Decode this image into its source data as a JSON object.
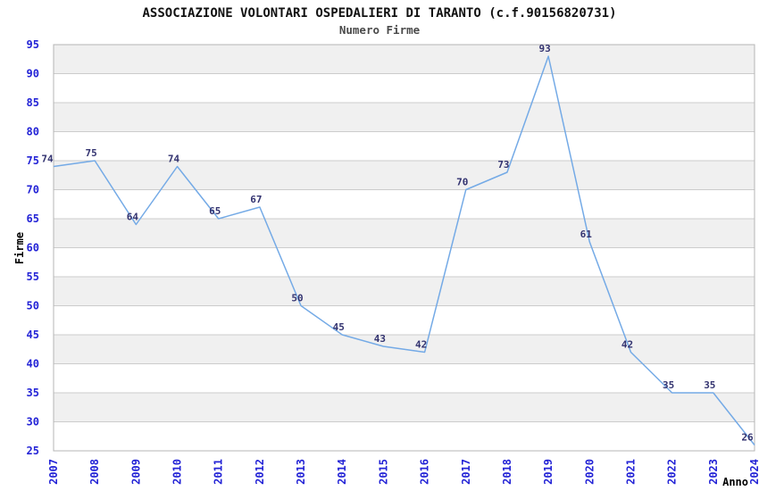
{
  "chart_data": {
    "type": "line",
    "title": "ASSOCIAZIONE VOLONTARI OSPEDALIERI DI TARANTO (c.f.90156820731)",
    "subtitle": "Numero Firme",
    "xlabel": "Anno",
    "ylabel": "Firme",
    "categories": [
      "2007",
      "2008",
      "2009",
      "2010",
      "2011",
      "2012",
      "2013",
      "2014",
      "2015",
      "2016",
      "2017",
      "2018",
      "2019",
      "2020",
      "2021",
      "2022",
      "2023",
      "2024"
    ],
    "values": [
      74,
      75,
      64,
      74,
      65,
      67,
      50,
      45,
      43,
      42,
      70,
      73,
      93,
      61,
      42,
      35,
      35,
      26
    ],
    "ylim": [
      25,
      95
    ],
    "ytick_step": 5,
    "grid": "horizontal",
    "legend_position": "none",
    "data_labels_shown": true,
    "colors": {
      "line": "#74aae6",
      "band": "#f0f0f0",
      "grid": "#cccccc",
      "border": "#b5b5b5",
      "tick_label": "#2323d6",
      "point_label": "#333370",
      "title": "#111111",
      "subtitle": "#4a4a4a"
    }
  }
}
